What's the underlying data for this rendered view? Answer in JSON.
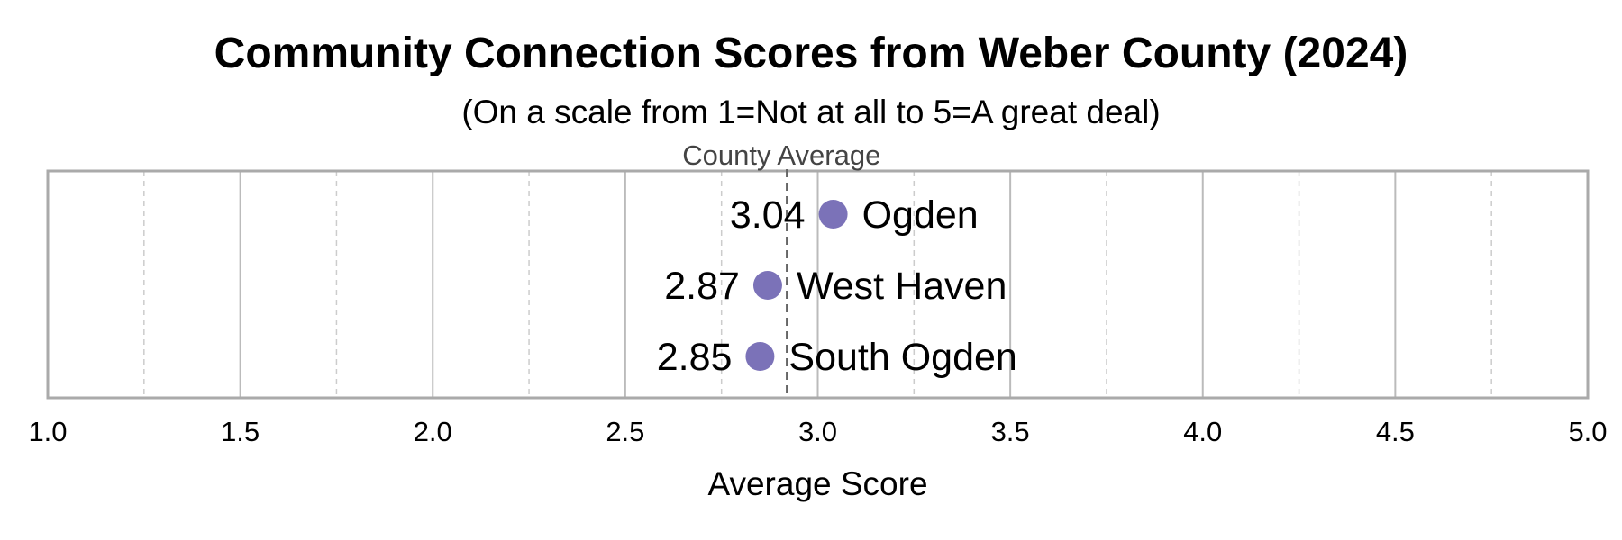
{
  "colors": {
    "marker": "#7b72b8",
    "frame": "#aaaaaa",
    "grid_major": "#bbbbbb",
    "grid_minor": "#cccccc",
    "reference": "#666666",
    "reference_label": "#444444",
    "text": "#000000"
  },
  "chart_data": {
    "type": "scatter",
    "title": "Community Connection Scores from Weber County (2024)",
    "subtitle": "(On a scale from 1=Not at all to 5=A great deal)",
    "xlabel": "Average Score",
    "ylabel": "",
    "xlim": [
      1.0,
      5.0
    ],
    "x_ticks": [
      "1.0",
      "1.5",
      "2.0",
      "2.5",
      "3.0",
      "3.5",
      "4.0",
      "4.5",
      "5.0"
    ],
    "grid": true,
    "minor_grid": true,
    "categories": [
      "Ogden",
      "West Haven",
      "South Ogden"
    ],
    "values": [
      3.04,
      2.87,
      2.85
    ],
    "value_labels": [
      "3.04",
      "2.87",
      "2.85"
    ],
    "reference_line": {
      "label": "County Average",
      "value": 2.92
    }
  }
}
